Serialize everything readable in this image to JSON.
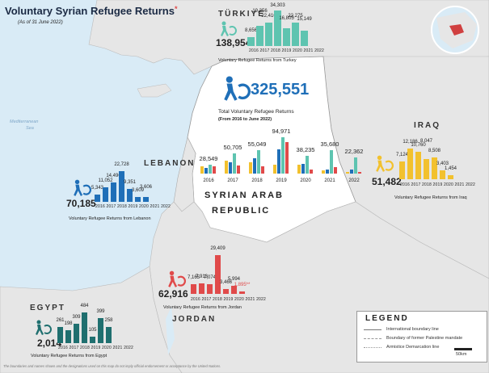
{
  "title": "Voluntary Syrian Refugee Returns",
  "title_mark": "*",
  "as_of": "(As of 31 June 2022)",
  "sea_label_1": "Mediterranean",
  "sea_label_2": "Sea",
  "syria": {
    "name_1": "SYRIAN ARAB",
    "name_2": "REPUBLIC",
    "total": "325,551",
    "caption": "Total Voluntary Refugee Returns",
    "period": "(From 2016 to June 2022)",
    "years": [
      "2016",
      "2017",
      "2018",
      "2019",
      "2020",
      "2021",
      "2022"
    ],
    "year_totals": [
      "28,549",
      "50,705",
      "55,049",
      "94,971",
      "38,235",
      "35,680",
      "22,362"
    ],
    "bar_colors": [
      "#f2c12e",
      "#1f6fb8",
      "#5ec4b0",
      "#e04a4a"
    ]
  },
  "turkiye": {
    "name": "TÜRKIYE",
    "total": "138,954",
    "caption": "Voluntary Refugee Returns from Turkey",
    "color": "#5ec4b0",
    "years": "2016 2017 2018 2019 2020 2021 2022",
    "labels": [
      "8,656",
      "19,356",
      "22,410",
      "34,303",
      "16,805",
      "22,275",
      "15,149"
    ]
  },
  "lebanon": {
    "name": "LEBANON",
    "total": "70,185",
    "caption": "Voluntary Refugee Returns from Lebanon",
    "color": "#1f6fb8",
    "years": "2016 2017 2018 2019 2020 2021 2022",
    "labels": [
      "5,343",
      "11,052",
      "14,496",
      "22,728",
      "9,351",
      "3,609",
      "3,606"
    ]
  },
  "iraq": {
    "name": "IRAQ",
    "total": "51,482",
    "caption": "Voluntary Refugee Returns from Iraq",
    "color": "#f2c12e",
    "years": "2016 2017 2018 2019 2020 2021 2022",
    "labels": [
      "7,124",
      "12,186",
      "10,760",
      "8,047",
      "8,508",
      "3,403",
      "1,454"
    ]
  },
  "jordan": {
    "name": "JORDAN",
    "total": "62,916",
    "caption": "Voluntary Refugee Returns from Jordan",
    "color": "#e04a4a",
    "years": "2016 2017 2018 2019 2020 2021 2022",
    "labels": [
      "7,165",
      "7,913",
      "7,074",
      "29,409",
      "3,466",
      "5,994",
      "1,895**"
    ]
  },
  "egypt": {
    "name": "EGYPT",
    "total": "2,014",
    "caption": "Voluntary Refugee Returns from Egypt",
    "color": "#1f6f6f",
    "years": "2016 2017 2018 2019 2020 2021 2022",
    "labels": [
      "261",
      "198",
      "309",
      "484",
      "105",
      "399",
      "258"
    ]
  },
  "legend": {
    "title": "LEGEND",
    "items": [
      "International boundary line",
      "Boundary of former Palestine mandate",
      "Armistice Demarcation line"
    ],
    "scale": "50km"
  },
  "footnote": "The boundaries and names shown and the designations used on this map do not imply official endorsement or acceptance by the United Nations.",
  "chart_data": [
    {
      "type": "bar",
      "title": "Voluntary Refugee Returns from Turkey",
      "categories": [
        "2016",
        "2017",
        "2018",
        "2019",
        "2020",
        "2021",
        "2022"
      ],
      "values": [
        8656,
        19356,
        22410,
        34303,
        16805,
        22275,
        15149
      ]
    },
    {
      "type": "bar",
      "title": "Voluntary Refugee Returns from Lebanon",
      "categories": [
        "2016",
        "2017",
        "2018",
        "2019",
        "2020",
        "2021",
        "2022"
      ],
      "values": [
        5343,
        11052,
        14496,
        22728,
        9351,
        3609,
        3606
      ]
    },
    {
      "type": "bar",
      "title": "Voluntary Refugee Returns from Iraq",
      "categories": [
        "2016",
        "2017",
        "2018",
        "2019",
        "2020",
        "2021",
        "2022"
      ],
      "values": [
        7124,
        12186,
        10760,
        8047,
        8508,
        3403,
        1454
      ]
    },
    {
      "type": "bar",
      "title": "Voluntary Refugee Returns from Jordan",
      "categories": [
        "2016",
        "2017",
        "2018",
        "2019",
        "2020",
        "2021",
        "2022"
      ],
      "values": [
        7165,
        7913,
        7074,
        29409,
        3466,
        5994,
        1895
      ]
    },
    {
      "type": "bar",
      "title": "Voluntary Refugee Returns from Egypt",
      "categories": [
        "2016",
        "2017",
        "2018",
        "2019",
        "2020",
        "2021",
        "2022"
      ],
      "values": [
        261,
        198,
        309,
        484,
        105,
        399,
        258
      ]
    },
    {
      "type": "bar",
      "title": "Total Voluntary Refugee Returns",
      "categories": [
        "2016",
        "2017",
        "2018",
        "2019",
        "2020",
        "2021",
        "2022"
      ],
      "values": [
        28549,
        50705,
        55049,
        94971,
        38235,
        35680,
        22362
      ]
    }
  ]
}
